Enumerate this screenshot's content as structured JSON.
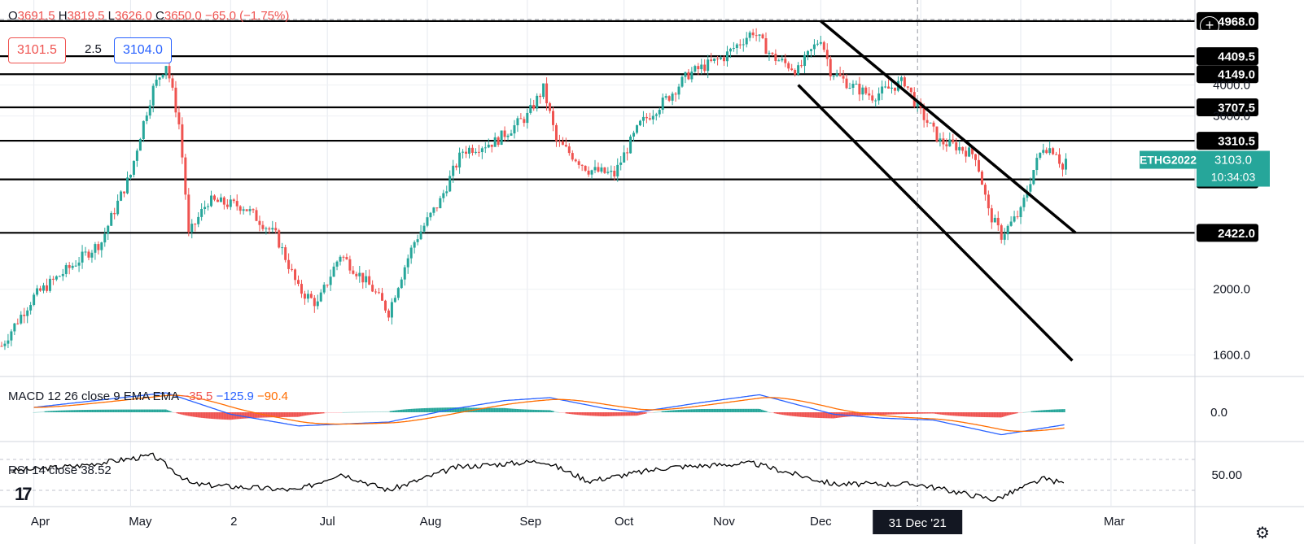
{
  "ohlc": {
    "o_label": "O",
    "o": "3691.5",
    "h_label": "H",
    "h": "3819.5",
    "l_label": "L",
    "l": "3626.0",
    "c_label": "C",
    "c": "3650.0",
    "change": "−65.0 (−1.75%)"
  },
  "trade": {
    "sell": "3101.5",
    "spread": "2.5",
    "buy": "3104.0"
  },
  "symbol": {
    "name": "ETHG2022",
    "price": "3103.0",
    "countdown": "10:34:03"
  },
  "price_axis_labels": [
    "4000.0",
    "3600.0",
    "2000.0",
    "1600.0"
  ],
  "macd": {
    "label": "MACD 12 26 close 9 EMA EMA",
    "hist": "−35.5",
    "macd": "−125.9",
    "signal": "−90.4",
    "axis_label": "0.0"
  },
  "rsi": {
    "label": "RSI 14 close",
    "value": "38.52",
    "axis_label": "50.00"
  },
  "time_axis": {
    "labels": [
      "Apr",
      "May",
      "2",
      "Jul",
      "Aug",
      "Sep",
      "Oct",
      "Nov",
      "Dec",
      "Mar"
    ],
    "crosshair_label": "31 Dec '21"
  },
  "colors": {
    "up": "#26a69a",
    "down": "#ef5350",
    "symbol_bg": "#26a69a",
    "macd_line": "#2962ff",
    "signal_line": "#ff6d00"
  },
  "icons": {
    "logo": "tradingview-logo-icon",
    "settings": "gear-icon",
    "add": "plus-circle-icon"
  },
  "chart_data": {
    "type": "candlestick",
    "symbol": "ETHG2022",
    "y_range": [
      1500,
      5050
    ],
    "horizontal_levels": [
      {
        "label": "4968.0",
        "value": 4968.0
      },
      {
        "label": "4409.5",
        "value": 4409.5
      },
      {
        "label": "4149.0",
        "value": 4149.0
      },
      {
        "label": "3707.5",
        "value": 3707.5
      },
      {
        "label": "3310.5",
        "value": 3310.5
      },
      {
        "label": "2903.5",
        "value": 2903.5
      },
      {
        "label": "2422.0",
        "value": 2422.0
      }
    ],
    "channel_lines": [
      {
        "name": "upper",
        "from": [
          "2021-12-01",
          4968
        ],
        "to": [
          "2022-02-18",
          2422
        ]
      },
      {
        "name": "lower",
        "from": [
          "2021-11-24",
          4000
        ],
        "to": [
          "2022-02-17",
          1570
        ]
      }
    ],
    "price_path": [
      [
        "2021-03-22",
        1650
      ],
      [
        "2021-04-01",
        1950
      ],
      [
        "2021-04-12",
        2150
      ],
      [
        "2021-04-22",
        2350
      ],
      [
        "2021-05-01",
        2950
      ],
      [
        "2021-05-08",
        3950
      ],
      [
        "2021-05-12",
        4300
      ],
      [
        "2021-05-16",
        3500
      ],
      [
        "2021-05-19",
        2400
      ],
      [
        "2021-05-25",
        2700
      ],
      [
        "2021-06-05",
        2650
      ],
      [
        "2021-06-15",
        2400
      ],
      [
        "2021-06-22",
        2000
      ],
      [
        "2021-06-28",
        1900
      ],
      [
        "2021-07-05",
        2250
      ],
      [
        "2021-07-15",
        2000
      ],
      [
        "2021-07-20",
        1850
      ],
      [
        "2021-07-28",
        2350
      ],
      [
        "2021-08-05",
        2700
      ],
      [
        "2021-08-12",
        3200
      ],
      [
        "2021-08-22",
        3300
      ],
      [
        "2021-09-01",
        3600
      ],
      [
        "2021-09-06",
        3950
      ],
      [
        "2021-09-10",
        3300
      ],
      [
        "2021-09-20",
        3000
      ],
      [
        "2021-09-28",
        2950
      ],
      [
        "2021-10-06",
        3500
      ],
      [
        "2021-10-15",
        3850
      ],
      [
        "2021-10-21",
        4150
      ],
      [
        "2021-11-01",
        4400
      ],
      [
        "2021-11-10",
        4800
      ],
      [
        "2021-11-16",
        4400
      ],
      [
        "2021-11-24",
        4200
      ],
      [
        "2021-12-01",
        4700
      ],
      [
        "2021-12-04",
        4200
      ],
      [
        "2021-12-10",
        4000
      ],
      [
        "2021-12-17",
        3850
      ],
      [
        "2021-12-27",
        4050
      ],
      [
        "2021-12-31",
        3700
      ],
      [
        "2022-01-07",
        3300
      ],
      [
        "2022-01-12",
        3250
      ],
      [
        "2022-01-18",
        3150
      ],
      [
        "2022-01-22",
        2600
      ],
      [
        "2022-01-26",
        2400
      ],
      [
        "2022-02-01",
        2600
      ],
      [
        "2022-02-05",
        3000
      ],
      [
        "2022-02-08",
        3250
      ],
      [
        "2022-02-12",
        3200
      ],
      [
        "2022-02-14",
        3000
      ],
      [
        "2022-02-15",
        3103
      ]
    ],
    "macd": {
      "hist": -35.5,
      "macd": -125.9,
      "signal": -90.4,
      "path": [
        [
          "2021-04-01",
          50
        ],
        [
          "2021-05-12",
          200
        ],
        [
          "2021-06-01",
          -20
        ],
        [
          "2021-06-22",
          -140
        ],
        [
          "2021-07-20",
          -100
        ],
        [
          "2021-08-10",
          40
        ],
        [
          "2021-08-25",
          120
        ],
        [
          "2021-09-08",
          150
        ],
        [
          "2021-09-25",
          40
        ],
        [
          "2021-10-05",
          0
        ],
        [
          "2021-10-25",
          100
        ],
        [
          "2021-11-12",
          180
        ],
        [
          "2021-12-05",
          -20
        ],
        [
          "2021-12-20",
          -60
        ],
        [
          "2022-01-05",
          -80
        ],
        [
          "2022-01-26",
          -230
        ],
        [
          "2022-02-15",
          -126
        ]
      ]
    },
    "rsi": {
      "value": 38.52,
      "path": [
        [
          "2021-03-25",
          55
        ],
        [
          "2021-04-15",
          62
        ],
        [
          "2021-05-08",
          75
        ],
        [
          "2021-05-20",
          38
        ],
        [
          "2021-06-22",
          30
        ],
        [
          "2021-07-05",
          52
        ],
        [
          "2021-07-20",
          30
        ],
        [
          "2021-08-10",
          60
        ],
        [
          "2021-09-06",
          68
        ],
        [
          "2021-09-20",
          42
        ],
        [
          "2021-10-15",
          60
        ],
        [
          "2021-11-10",
          65
        ],
        [
          "2021-12-05",
          38
        ],
        [
          "2021-12-31",
          38
        ],
        [
          "2022-01-24",
          18
        ],
        [
          "2022-02-08",
          45
        ],
        [
          "2022-02-15",
          38.52
        ]
      ]
    }
  }
}
